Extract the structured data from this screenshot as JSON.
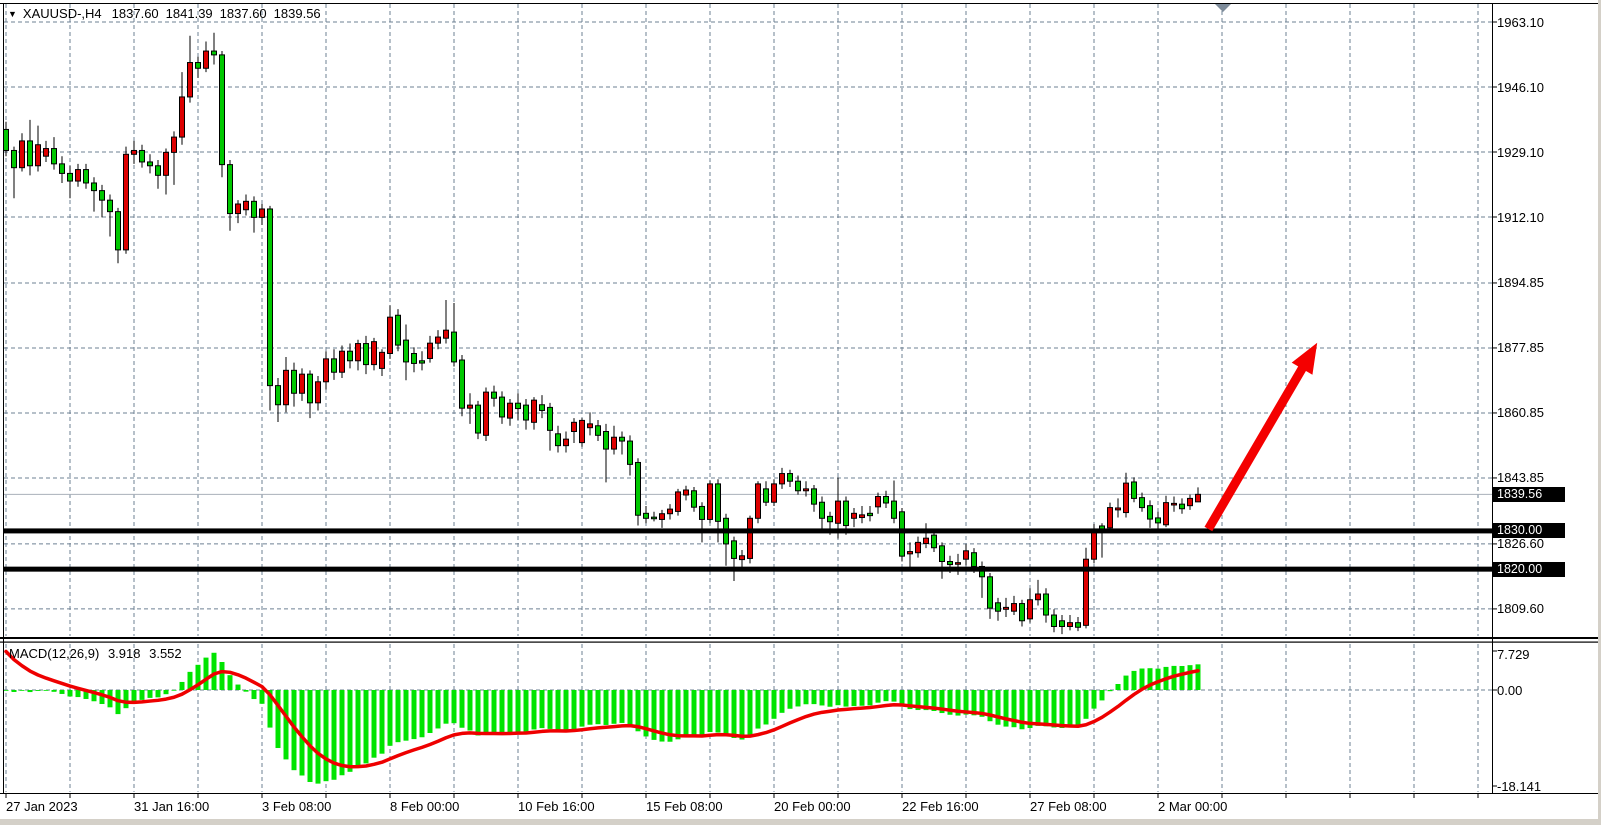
{
  "title": {
    "symbol": "XAUUSD-,H4",
    "open": "1837.60",
    "high": "1841.39",
    "low": "1837.60",
    "close": "1839.56"
  },
  "indicator": {
    "label": "MACD(12,26,9)",
    "value_main": "3.918",
    "value_signal": "3.552"
  },
  "price_axis": {
    "labels": [
      {
        "text": "1963.10",
        "price": 1963.1
      },
      {
        "text": "1946.10",
        "price": 1946.1
      },
      {
        "text": "1929.10",
        "price": 1929.1
      },
      {
        "text": "1912.10",
        "price": 1912.1
      },
      {
        "text": "1894.85",
        "price": 1894.85
      },
      {
        "text": "1877.85",
        "price": 1877.85
      },
      {
        "text": "1860.85",
        "price": 1860.85
      },
      {
        "text": "1843.85",
        "price": 1843.85
      },
      {
        "text": "1826.60",
        "price": 1826.6
      },
      {
        "text": "1809.60",
        "price": 1809.6
      }
    ],
    "macd_labels": [
      {
        "text": "7.729",
        "anchor": "max"
      },
      {
        "text": "0.00",
        "anchor": "zero"
      },
      {
        "text": "-18.141",
        "anchor": "min"
      }
    ],
    "badges": [
      {
        "text": "1839.56",
        "price": 1839.56,
        "type": "current-price"
      },
      {
        "text": "1830.00",
        "price": 1830.0,
        "type": "support-line"
      },
      {
        "text": "1820.00",
        "price": 1820.0,
        "type": "support-line"
      }
    ]
  },
  "time_axis": {
    "labels": [
      {
        "text": "27 Jan 2023",
        "bar": 0
      },
      {
        "text": "31 Jan 16:00",
        "bar": 16
      },
      {
        "text": "3 Feb 08:00",
        "bar": 32
      },
      {
        "text": "8 Feb 00:00",
        "bar": 48
      },
      {
        "text": "10 Feb 16:00",
        "bar": 64
      },
      {
        "text": "15 Feb 08:00",
        "bar": 80
      },
      {
        "text": "20 Feb 00:00",
        "bar": 96
      },
      {
        "text": "22 Feb 16:00",
        "bar": 112
      },
      {
        "text": "27 Feb 08:00",
        "bar": 128
      },
      {
        "text": "2 Mar 00:00",
        "bar": 144
      }
    ]
  },
  "chart_data": {
    "type": "candlestick",
    "symbol": "XAUUSD-",
    "timeframe": "H4",
    "current_price": 1839.56,
    "support_lines": [
      1830.0,
      1820.0
    ],
    "price_gridlines": [
      1963.1,
      1946.1,
      1929.1,
      1912.1,
      1894.85,
      1877.85,
      1860.85,
      1843.85,
      1826.6,
      1809.6
    ],
    "macd": {
      "fast": 12,
      "slow": 26,
      "signal": 9,
      "current_main": 3.918,
      "current_signal": 3.552,
      "axis_max": 7.729,
      "axis_min": -18.141
    },
    "annotations": [
      {
        "type": "trend-arrow",
        "direction": "up",
        "color": "#f40000",
        "from": {
          "bar": 150.3,
          "price": 1830.5
        },
        "to": {
          "bar": 163.9,
          "price": 1879.2
        }
      }
    ],
    "colors": {
      "bull": "#dd0000",
      "bear": "#00c800",
      "macd_histogram": "#00e400",
      "macd_signal": "#ee0000",
      "grid": "#6e8093",
      "support_line": "#000000",
      "current_price_line": "#a9b0ba",
      "badge_bg": "#000000",
      "badge_text": "#ffffff"
    },
    "candles": [
      [
        1935,
        1937,
        1928,
        1929.5
      ],
      [
        1929.5,
        1930.5,
        1917,
        1925
      ],
      [
        1925,
        1934,
        1924,
        1932
      ],
      [
        1932,
        1937.5,
        1923,
        1925.5
      ],
      [
        1925.5,
        1936,
        1924,
        1931
      ],
      [
        1928,
        1932,
        1926.5,
        1930
      ],
      [
        1930,
        1933,
        1924.5,
        1926
      ],
      [
        1926,
        1928,
        1921,
        1923.5
      ],
      [
        1923.5,
        1925.5,
        1917,
        1921.5
      ],
      [
        1921.5,
        1926,
        1920,
        1924.5
      ],
      [
        1924.5,
        1926,
        1919.5,
        1921
      ],
      [
        1921,
        1922.5,
        1913.5,
        1919
      ],
      [
        1919,
        1920.5,
        1912,
        1916.5
      ],
      [
        1916.5,
        1918,
        1907,
        1913.5
      ],
      [
        1913.5,
        1914.5,
        1900,
        1903.5
      ],
      [
        1903.5,
        1930.5,
        1902.5,
        1928.5
      ],
      [
        1928.5,
        1932,
        1926,
        1929.5
      ],
      [
        1929.5,
        1931,
        1925,
        1926.5
      ],
      [
        1926.5,
        1928.5,
        1923.5,
        1925.5
      ],
      [
        1925.5,
        1927,
        1919.5,
        1923
      ],
      [
        1923,
        1930,
        1918,
        1929
      ],
      [
        1929,
        1934.5,
        1920.5,
        1933
      ],
      [
        1933,
        1950,
        1931,
        1943.5
      ],
      [
        1943.5,
        1959.5,
        1942,
        1952.5
      ],
      [
        1952.5,
        1954,
        1948.5,
        1951
      ],
      [
        1951,
        1958,
        1950,
        1955.5
      ],
      [
        1955.5,
        1960.3,
        1952,
        1954.5
      ],
      [
        1954.5,
        1955.5,
        1922.5,
        1925.8
      ],
      [
        1925.8,
        1927,
        1908.5,
        1913
      ],
      [
        1913,
        1916.5,
        1910.5,
        1915.5
      ],
      [
        1914,
        1918,
        1912.5,
        1916.2
      ],
      [
        1916.2,
        1917.5,
        1908,
        1912
      ],
      [
        1912,
        1915.5,
        1910,
        1914.2
      ],
      [
        1914.2,
        1915,
        1861.5,
        1868
      ],
      [
        1868,
        1870,
        1858.5,
        1863
      ],
      [
        1863,
        1875.5,
        1861,
        1872
      ],
      [
        1872,
        1874,
        1862.5,
        1866
      ],
      [
        1866,
        1872.5,
        1864,
        1871
      ],
      [
        1871,
        1872,
        1859.5,
        1863.5
      ],
      [
        1863.5,
        1870.5,
        1861.5,
        1869
      ],
      [
        1869,
        1877,
        1867,
        1875
      ],
      [
        1875,
        1877.5,
        1869.5,
        1871.5
      ],
      [
        1871.5,
        1878.5,
        1870,
        1877
      ],
      [
        1877,
        1879,
        1872.5,
        1874.5
      ],
      [
        1874.5,
        1880,
        1872,
        1879
      ],
      [
        1879,
        1881,
        1871,
        1873.5
      ],
      [
        1873.5,
        1880.5,
        1872,
        1879.5
      ],
      [
        1872.5,
        1877.5,
        1870.5,
        1876.7
      ],
      [
        1876.4,
        1889,
        1875,
        1885.9
      ],
      [
        1886.4,
        1888,
        1877,
        1878.6
      ],
      [
        1879.9,
        1884,
        1869.4,
        1874.2
      ],
      [
        1876.4,
        1878,
        1871.5,
        1873.8
      ],
      [
        1874.5,
        1877,
        1872,
        1873.9
      ],
      [
        1875.1,
        1881,
        1874,
        1879.1
      ],
      [
        1879.1,
        1882.5,
        1877.5,
        1880.7
      ],
      [
        1880.4,
        1890.4,
        1879,
        1882.5
      ],
      [
        1882,
        1889.6,
        1873,
        1874.2
      ],
      [
        1874.7,
        1876,
        1860,
        1862.1
      ],
      [
        1862.1,
        1866,
        1858,
        1862.9
      ],
      [
        1862.9,
        1864,
        1854,
        1855.6
      ],
      [
        1855,
        1867.5,
        1853.5,
        1866.3
      ],
      [
        1866.3,
        1868,
        1862.5,
        1864.7
      ],
      [
        1865,
        1866.5,
        1858,
        1859.8
      ],
      [
        1859.5,
        1864.5,
        1857.5,
        1863.4
      ],
      [
        1863.4,
        1866,
        1859,
        1862
      ],
      [
        1862.9,
        1864.5,
        1856.5,
        1859
      ],
      [
        1858.4,
        1865,
        1856.5,
        1864.2
      ],
      [
        1863,
        1865.5,
        1859.5,
        1861.5
      ],
      [
        1862.3,
        1863.5,
        1851,
        1856.3
      ],
      [
        1855.4,
        1857.5,
        1850.5,
        1852.3
      ],
      [
        1852.3,
        1856,
        1850.5,
        1854
      ],
      [
        1856,
        1859.5,
        1853,
        1858.4
      ],
      [
        1853.1,
        1859.5,
        1852,
        1858.9
      ],
      [
        1857,
        1861,
        1855,
        1858
      ],
      [
        1857.5,
        1859,
        1853.5,
        1855
      ],
      [
        1856,
        1858,
        1842.7,
        1851.4
      ],
      [
        1851.4,
        1857.5,
        1850,
        1854.5
      ],
      [
        1854.5,
        1856,
        1850,
        1853.5
      ],
      [
        1853.5,
        1855,
        1844.5,
        1847.4
      ],
      [
        1847.9,
        1849,
        1831.4,
        1834.1
      ],
      [
        1834.6,
        1836.5,
        1832,
        1833.3
      ],
      [
        1833.6,
        1835,
        1832.5,
        1833.4
      ],
      [
        1833,
        1835.5,
        1830.8,
        1834.5
      ],
      [
        1834.5,
        1837,
        1833,
        1835.7
      ],
      [
        1835.1,
        1841,
        1834,
        1840.2
      ],
      [
        1839.4,
        1841.8,
        1838,
        1840.7
      ],
      [
        1840.5,
        1841.5,
        1835,
        1836.2
      ],
      [
        1836.4,
        1837.5,
        1827,
        1833
      ],
      [
        1833,
        1843.2,
        1832,
        1842.3
      ],
      [
        1842.3,
        1843.5,
        1827,
        1832.5
      ],
      [
        1833.3,
        1834.5,
        1820.9,
        1826.6
      ],
      [
        1827.4,
        1828.5,
        1816.9,
        1822.8
      ],
      [
        1822.5,
        1825,
        1820.5,
        1823.5
      ],
      [
        1822.8,
        1834,
        1821.5,
        1833.3
      ],
      [
        1833.3,
        1843,
        1832,
        1842.3
      ],
      [
        1841,
        1843,
        1836.5,
        1837.5
      ],
      [
        1837.5,
        1843.5,
        1836.5,
        1842.3
      ],
      [
        1842.3,
        1846.5,
        1841,
        1845
      ],
      [
        1845,
        1846,
        1841.5,
        1843
      ],
      [
        1843,
        1844.5,
        1839.5,
        1840.5
      ],
      [
        1840.5,
        1843,
        1839,
        1841
      ],
      [
        1841,
        1842,
        1835,
        1837
      ],
      [
        1837.5,
        1839,
        1830,
        1833.3
      ],
      [
        1833.8,
        1835,
        1829,
        1832.4
      ],
      [
        1832,
        1844,
        1828,
        1837.8
      ],
      [
        1837.8,
        1839,
        1829,
        1831.4
      ],
      [
        1833.3,
        1836,
        1831,
        1834.6
      ],
      [
        1833.5,
        1836.5,
        1832,
        1834.2
      ],
      [
        1834.6,
        1836.5,
        1832.5,
        1834
      ],
      [
        1836.3,
        1840,
        1834.5,
        1839
      ],
      [
        1839,
        1840.5,
        1836,
        1837.3
      ],
      [
        1837.8,
        1843.2,
        1832,
        1833.3
      ],
      [
        1835,
        1836,
        1822,
        1823.4
      ],
      [
        1824,
        1827,
        1820.5,
        1824.6
      ],
      [
        1824.3,
        1828.5,
        1823,
        1827
      ],
      [
        1826.7,
        1832,
        1825.5,
        1828.1
      ],
      [
        1828.9,
        1830,
        1824.5,
        1825.6
      ],
      [
        1826.1,
        1827,
        1817.5,
        1822
      ],
      [
        1822,
        1823.5,
        1819,
        1821.2
      ],
      [
        1821.3,
        1824,
        1818.5,
        1821.7
      ],
      [
        1822.6,
        1826.5,
        1821,
        1824.8
      ],
      [
        1824.3,
        1825.5,
        1819,
        1820.7
      ],
      [
        1820.7,
        1822,
        1812.5,
        1818
      ],
      [
        1818,
        1819,
        1807,
        1809.8
      ],
      [
        1811.2,
        1812.5,
        1806.5,
        1809
      ],
      [
        1809.5,
        1812.5,
        1807.5,
        1810
      ],
      [
        1809,
        1813,
        1808,
        1811
      ],
      [
        1811,
        1812,
        1805,
        1806.5
      ],
      [
        1807,
        1815,
        1806,
        1812
      ],
      [
        1812,
        1817.2,
        1810.5,
        1813.5
      ],
      [
        1813.5,
        1815,
        1806,
        1808
      ],
      [
        1808,
        1809.5,
        1803.5,
        1805
      ],
      [
        1806.5,
        1808,
        1803,
        1805
      ],
      [
        1805,
        1808,
        1804,
        1806
      ],
      [
        1806,
        1807.5,
        1803.8,
        1804.8
      ],
      [
        1805.3,
        1825.6,
        1804.5,
        1822.6
      ],
      [
        1822.6,
        1831.8,
        1821.5,
        1830
      ],
      [
        1831.3,
        1832,
        1823,
        1830
      ],
      [
        1830.8,
        1837.4,
        1829.5,
        1836.1
      ],
      [
        1835.5,
        1838.5,
        1833.5,
        1836
      ],
      [
        1834.8,
        1845.2,
        1833.5,
        1842.5
      ],
      [
        1842.8,
        1844,
        1837.5,
        1838.5
      ],
      [
        1838.7,
        1840,
        1835,
        1836.1
      ],
      [
        1836.6,
        1838,
        1830.8,
        1833.1
      ],
      [
        1833.4,
        1835,
        1830.5,
        1832.1
      ],
      [
        1831.6,
        1839.2,
        1831,
        1837.4
      ],
      [
        1837,
        1839,
        1835,
        1837.2
      ],
      [
        1837,
        1838.5,
        1834.5,
        1835.8
      ],
      [
        1836.6,
        1839.5,
        1835.5,
        1838.5
      ],
      [
        1837.6,
        1841.39,
        1837.6,
        1839.56
      ]
    ]
  }
}
